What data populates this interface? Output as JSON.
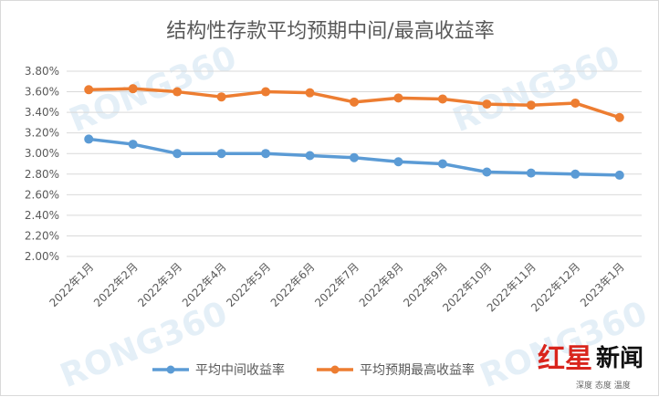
{
  "chart_data": {
    "type": "line",
    "title": "结构性存款平均预期中间/最高收益率",
    "categories": [
      "2022年1月",
      "2022年2月",
      "2022年3月",
      "2022年4月",
      "2022年5月",
      "2022年6月",
      "2022年7月",
      "2022年8月",
      "2022年9月",
      "2022年10月",
      "2022年11月",
      "2022年12月",
      "2023年1月"
    ],
    "series": [
      {
        "name": "平均中间收益率",
        "color": "#5b9bd5",
        "values": [
          3.14,
          3.09,
          3.0,
          3.0,
          3.0,
          2.98,
          2.96,
          2.92,
          2.9,
          2.82,
          2.81,
          2.8,
          2.79
        ]
      },
      {
        "name": "平均预期最高收益率",
        "color": "#ed7d31",
        "values": [
          3.62,
          3.63,
          3.6,
          3.55,
          3.6,
          3.59,
          3.5,
          3.54,
          3.53,
          3.48,
          3.47,
          3.49,
          3.35
        ]
      }
    ],
    "ylim": [
      2.0,
      3.8
    ],
    "ytick_step": 0.2,
    "ytick_labels": [
      "2.00%",
      "2.20%",
      "2.40%",
      "2.60%",
      "2.80%",
      "3.00%",
      "3.20%",
      "3.40%",
      "3.60%",
      "3.80%"
    ],
    "grid": true,
    "legend": "bottom"
  },
  "watermark": "RONG360",
  "logo": {
    "red": "红星",
    "black": "新闻",
    "tagline": "深度 态度 温度"
  }
}
